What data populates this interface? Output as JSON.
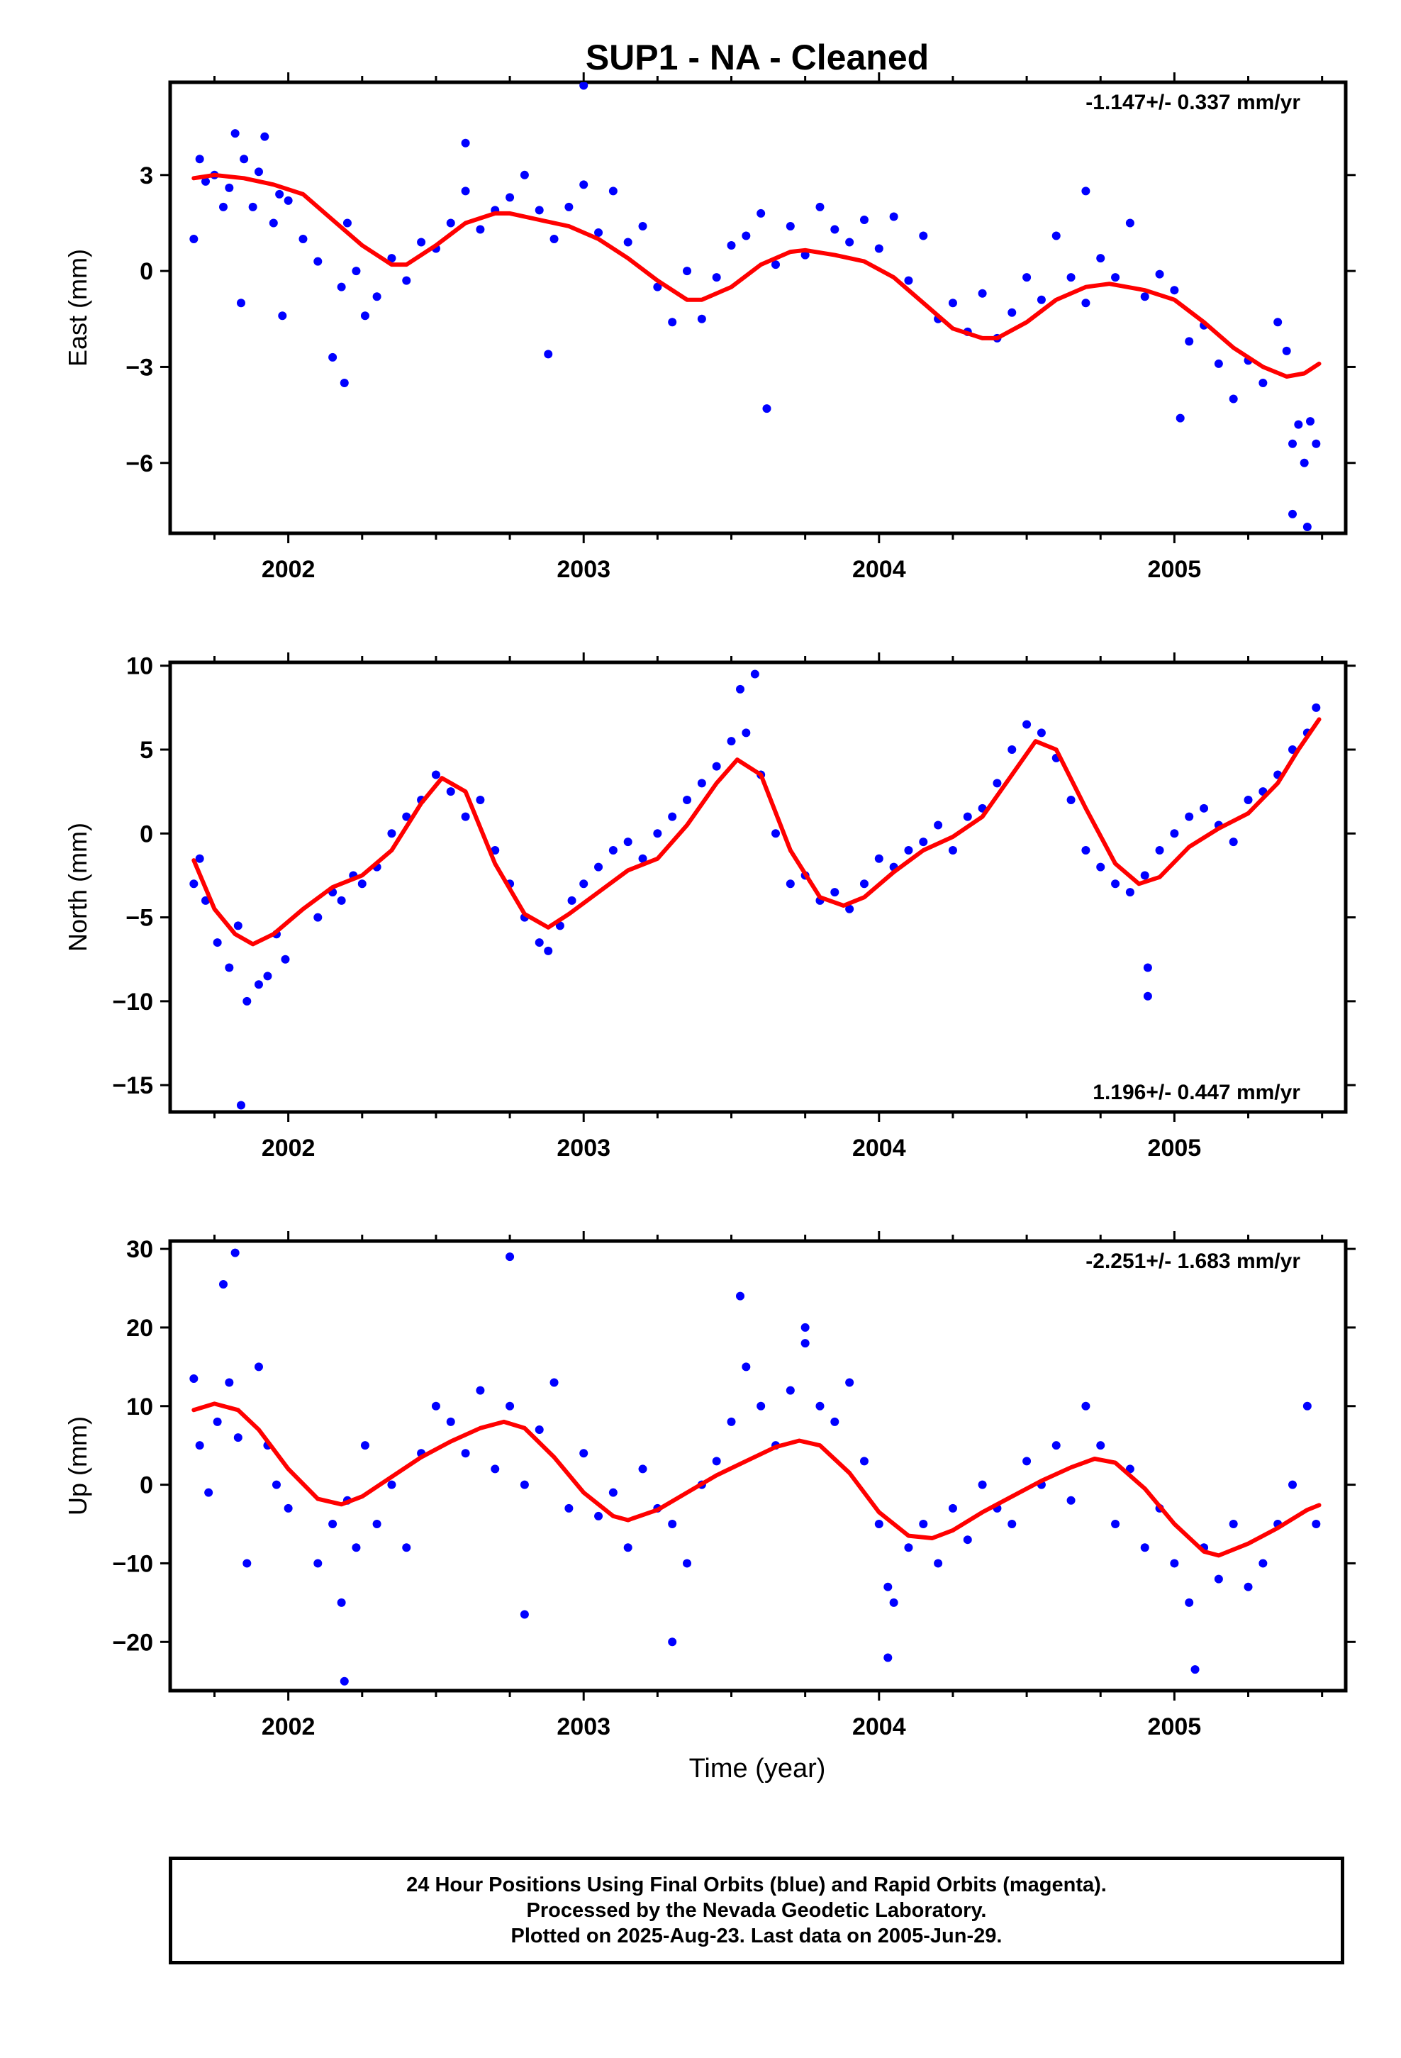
{
  "figure": {
    "title": "SUP1  - NA - Cleaned",
    "xlabel": "Time (year)",
    "footer_lines": [
      "24 Hour Positions Using Final Orbits (blue) and Rapid Orbits (magenta).",
      "Processed by the Nevada Geodetic Laboratory.",
      "Plotted on 2025-Aug-23. Last data on 2005-Jun-29."
    ],
    "colors": {
      "points": "#0000ff",
      "fit": "#ff0000",
      "frame": "#000000"
    }
  },
  "chart_data": [
    {
      "type": "scatter",
      "component": "East",
      "ylabel": "East (mm)",
      "rate_label": "-1.147+/- 0.337 mm/yr",
      "rate_position": "top-right",
      "xlim": [
        2001.6,
        2005.58
      ],
      "ylim": [
        -8.2,
        5.9
      ],
      "xticks": [
        2002,
        2003,
        2004,
        2005
      ],
      "yticks": [
        3,
        0,
        -3,
        -6
      ],
      "ytick_labels": [
        "3",
        "0",
        "−3",
        "−6"
      ],
      "grid": false,
      "series": [
        {
          "role": "daily_positions",
          "marker": "dot",
          "x": [
            2001.68,
            2001.7,
            2001.72,
            2001.75,
            2001.78,
            2001.8,
            2001.82,
            2001.85,
            2001.88,
            2001.9,
            2001.92,
            2001.95,
            2001.97,
            2002.0,
            2002.05,
            2002.1,
            2002.15,
            2002.18,
            2002.2,
            2002.23,
            2002.26,
            2002.3,
            2002.35,
            2002.4,
            2002.45,
            2002.5,
            2002.55,
            2002.6,
            2002.65,
            2002.7,
            2002.75,
            2002.8,
            2002.85,
            2002.9,
            2002.95,
            2003.0,
            2003.05,
            2003.1,
            2003.15,
            2003.2,
            2003.25,
            2003.3,
            2003.35,
            2003.4,
            2003.45,
            2003.5,
            2003.55,
            2003.6,
            2003.65,
            2003.7,
            2003.75,
            2003.8,
            2003.85,
            2003.9,
            2003.95,
            2004.0,
            2004.05,
            2004.1,
            2004.15,
            2004.2,
            2004.25,
            2004.3,
            2004.35,
            2004.4,
            2004.45,
            2004.5,
            2004.55,
            2004.6,
            2004.65,
            2004.7,
            2004.75,
            2004.8,
            2004.85,
            2004.9,
            2004.95,
            2005.0,
            2005.05,
            2005.1,
            2005.15,
            2005.2,
            2005.25,
            2005.3,
            2005.35,
            2005.38,
            2005.4,
            2005.42,
            2005.44,
            2005.46,
            2005.48,
            2001.84,
            2001.98,
            2002.6,
            2003.0,
            2003.62,
            2004.7,
            2005.45,
            2005.4,
            2002.19,
            2002.88,
            2005.02
          ],
          "y": [
            1.0,
            3.5,
            2.8,
            3.0,
            2.0,
            2.6,
            4.3,
            3.5,
            2.0,
            3.1,
            4.2,
            1.5,
            2.4,
            2.2,
            1.0,
            0.3,
            -2.7,
            -0.5,
            1.5,
            0.0,
            -1.4,
            -0.8,
            0.4,
            -0.3,
            0.9,
            0.7,
            1.5,
            2.5,
            1.3,
            1.9,
            2.3,
            3.0,
            1.9,
            1.0,
            2.0,
            2.7,
            1.2,
            2.5,
            0.9,
            1.4,
            -0.5,
            -1.6,
            0.0,
            -1.5,
            -0.2,
            0.8,
            1.1,
            1.8,
            0.2,
            1.4,
            0.5,
            2.0,
            1.3,
            0.9,
            1.6,
            0.7,
            1.7,
            -0.3,
            1.1,
            -1.5,
            -1.0,
            -1.9,
            -0.7,
            -2.1,
            -1.3,
            -0.2,
            -0.9,
            1.1,
            -0.2,
            -1.0,
            0.4,
            -0.2,
            1.5,
            -0.8,
            -0.1,
            -0.6,
            -2.2,
            -1.7,
            -2.9,
            -4.0,
            -2.8,
            -3.5,
            -1.6,
            -2.5,
            -5.4,
            -4.8,
            -6.0,
            -4.7,
            -5.4,
            -1.0,
            -1.4,
            4.0,
            5.8,
            -4.3,
            2.5,
            -8.0,
            -7.6,
            -3.5,
            -2.6,
            -4.6
          ]
        },
        {
          "role": "smoothed_fit",
          "marker": "line",
          "x": [
            2001.68,
            2001.75,
            2001.85,
            2001.95,
            2002.05,
            2002.15,
            2002.25,
            2002.35,
            2002.4,
            2002.5,
            2002.6,
            2002.7,
            2002.75,
            2002.85,
            2002.95,
            2003.05,
            2003.15,
            2003.25,
            2003.35,
            2003.4,
            2003.5,
            2003.6,
            2003.7,
            2003.75,
            2003.85,
            2003.95,
            2004.05,
            2004.15,
            2004.25,
            2004.35,
            2004.4,
            2004.5,
            2004.6,
            2004.7,
            2004.78,
            2004.9,
            2005.0,
            2005.1,
            2005.2,
            2005.3,
            2005.38,
            2005.44,
            2005.49
          ],
          "y": [
            2.9,
            3.0,
            2.9,
            2.7,
            2.4,
            1.6,
            0.8,
            0.2,
            0.2,
            0.8,
            1.5,
            1.8,
            1.8,
            1.6,
            1.4,
            1.0,
            0.4,
            -0.3,
            -0.9,
            -0.9,
            -0.5,
            0.2,
            0.6,
            0.65,
            0.5,
            0.3,
            -0.2,
            -1.0,
            -1.8,
            -2.1,
            -2.1,
            -1.6,
            -0.9,
            -0.5,
            -0.4,
            -0.6,
            -0.9,
            -1.6,
            -2.4,
            -3.0,
            -3.3,
            -3.2,
            -2.9
          ]
        }
      ]
    },
    {
      "type": "scatter",
      "component": "North",
      "ylabel": "North (mm)",
      "rate_label": "1.196+/- 0.447 mm/yr",
      "rate_position": "bottom-right",
      "xlim": [
        2001.6,
        2005.58
      ],
      "ylim": [
        -16.6,
        10.2
      ],
      "xticks": [
        2002,
        2003,
        2004,
        2005
      ],
      "yticks": [
        10,
        5,
        0,
        -5,
        -10,
        -15
      ],
      "ytick_labels": [
        "10",
        "5",
        "0",
        "−5",
        "−10",
        "−15"
      ],
      "grid": false,
      "series": [
        {
          "role": "daily_positions",
          "marker": "dot",
          "x": [
            2001.68,
            2001.7,
            2001.72,
            2001.76,
            2001.8,
            2001.83,
            2001.86,
            2001.9,
            2001.93,
            2001.96,
            2001.99,
            2002.1,
            2002.15,
            2002.18,
            2002.22,
            2002.25,
            2002.3,
            2002.35,
            2002.4,
            2002.45,
            2002.5,
            2002.55,
            2002.6,
            2002.65,
            2002.7,
            2002.75,
            2002.8,
            2002.85,
            2002.88,
            2002.92,
            2002.96,
            2003.0,
            2003.05,
            2003.1,
            2003.15,
            2003.2,
            2003.25,
            2003.3,
            2003.35,
            2003.4,
            2003.45,
            2003.5,
            2003.55,
            2003.6,
            2003.65,
            2003.7,
            2003.75,
            2003.8,
            2003.85,
            2003.9,
            2003.95,
            2004.0,
            2004.05,
            2004.1,
            2004.15,
            2004.2,
            2004.25,
            2004.3,
            2004.35,
            2004.4,
            2004.45,
            2004.5,
            2004.55,
            2004.6,
            2004.65,
            2004.7,
            2004.75,
            2004.8,
            2004.85,
            2004.9,
            2004.95,
            2005.0,
            2005.05,
            2005.1,
            2005.15,
            2005.2,
            2005.25,
            2005.3,
            2005.35,
            2005.4,
            2005.45,
            2005.48,
            2001.84,
            2003.53,
            2003.58,
            2004.91,
            2004.91
          ],
          "y": [
            -3.0,
            -1.5,
            -4.0,
            -6.5,
            -8.0,
            -5.5,
            -10.0,
            -9.0,
            -8.5,
            -6.0,
            -7.5,
            -5.0,
            -3.5,
            -4.0,
            -2.5,
            -3.0,
            -2.0,
            0.0,
            1.0,
            2.0,
            3.5,
            2.5,
            1.0,
            2.0,
            -1.0,
            -3.0,
            -5.0,
            -6.5,
            -7.0,
            -5.5,
            -4.0,
            -3.0,
            -2.0,
            -1.0,
            -0.5,
            -1.5,
            0.0,
            1.0,
            2.0,
            3.0,
            4.0,
            5.5,
            6.0,
            3.5,
            0.0,
            -3.0,
            -2.5,
            -4.0,
            -3.5,
            -4.5,
            -3.0,
            -1.5,
            -2.0,
            -1.0,
            -0.5,
            0.5,
            -1.0,
            1.0,
            1.5,
            3.0,
            5.0,
            6.5,
            6.0,
            4.5,
            2.0,
            -1.0,
            -2.0,
            -3.0,
            -3.5,
            -2.5,
            -1.0,
            0.0,
            1.0,
            1.5,
            0.5,
            -0.5,
            2.0,
            2.5,
            3.5,
            5.0,
            6.0,
            7.5,
            -16.2,
            8.6,
            9.5,
            -8.0,
            -9.7
          ]
        },
        {
          "role": "smoothed_fit",
          "marker": "line",
          "x": [
            2001.68,
            2001.75,
            2001.82,
            2001.88,
            2001.95,
            2002.05,
            2002.15,
            2002.25,
            2002.35,
            2002.45,
            2002.52,
            2002.6,
            2002.7,
            2002.8,
            2002.88,
            2002.95,
            2003.05,
            2003.15,
            2003.25,
            2003.35,
            2003.45,
            2003.52,
            2003.6,
            2003.7,
            2003.8,
            2003.88,
            2003.95,
            2004.05,
            2004.15,
            2004.25,
            2004.35,
            2004.45,
            2004.53,
            2004.6,
            2004.7,
            2004.8,
            2004.88,
            2004.95,
            2005.05,
            2005.15,
            2005.25,
            2005.35,
            2005.42,
            2005.49
          ],
          "y": [
            -1.6,
            -4.5,
            -6.0,
            -6.6,
            -6.0,
            -4.5,
            -3.2,
            -2.5,
            -1.0,
            1.8,
            3.3,
            2.5,
            -1.8,
            -4.8,
            -5.6,
            -4.8,
            -3.5,
            -2.2,
            -1.5,
            0.5,
            3.0,
            4.4,
            3.5,
            -1.0,
            -3.8,
            -4.3,
            -3.8,
            -2.3,
            -1.0,
            -0.2,
            1.0,
            3.5,
            5.5,
            5.0,
            1.5,
            -1.8,
            -3.0,
            -2.6,
            -0.8,
            0.3,
            1.2,
            3.0,
            5.0,
            6.8
          ]
        }
      ]
    },
    {
      "type": "scatter",
      "component": "Up",
      "ylabel": "Up (mm)",
      "rate_label": "-2.251+/- 1.683 mm/yr",
      "rate_position": "top-right",
      "xlim": [
        2001.6,
        2005.58
      ],
      "ylim": [
        -26.2,
        31.0
      ],
      "xticks": [
        2002,
        2003,
        2004,
        2005
      ],
      "yticks": [
        30,
        20,
        10,
        0,
        -10,
        -20
      ],
      "ytick_labels": [
        "30",
        "20",
        "10",
        "0",
        "−10",
        "−20"
      ],
      "grid": false,
      "series": [
        {
          "role": "daily_positions",
          "marker": "dot",
          "x": [
            2001.68,
            2001.7,
            2001.73,
            2001.76,
            2001.8,
            2001.83,
            2001.86,
            2001.9,
            2001.93,
            2001.96,
            2002.0,
            2002.1,
            2002.15,
            2002.18,
            2002.2,
            2002.23,
            2002.26,
            2002.3,
            2002.35,
            2002.4,
            2002.45,
            2002.5,
            2002.55,
            2002.6,
            2002.65,
            2002.7,
            2002.75,
            2002.8,
            2002.85,
            2002.9,
            2002.95,
            2003.0,
            2003.05,
            2003.1,
            2003.15,
            2003.2,
            2003.25,
            2003.3,
            2003.35,
            2003.4,
            2003.45,
            2003.5,
            2003.55,
            2003.6,
            2003.65,
            2003.7,
            2003.75,
            2003.8,
            2003.85,
            2003.9,
            2003.95,
            2004.0,
            2004.03,
            2004.05,
            2004.1,
            2004.15,
            2004.2,
            2004.25,
            2004.3,
            2004.35,
            2004.4,
            2004.45,
            2004.5,
            2004.55,
            2004.6,
            2004.65,
            2004.7,
            2004.75,
            2004.8,
            2004.85,
            2004.9,
            2004.95,
            2005.0,
            2005.05,
            2005.1,
            2005.15,
            2005.2,
            2005.25,
            2005.3,
            2005.35,
            2005.4,
            2005.45,
            2005.48,
            2001.78,
            2001.82,
            2002.19,
            2002.75,
            2003.3,
            2003.53,
            2004.03,
            2005.07,
            2002.8,
            2003.75
          ],
          "y": [
            13.5,
            5.0,
            -1.0,
            8.0,
            13.0,
            6.0,
            -10.0,
            15.0,
            5.0,
            0.0,
            -3.0,
            -10.0,
            -5.0,
            -15.0,
            -2.0,
            -8.0,
            5.0,
            -5.0,
            0.0,
            -8.0,
            4.0,
            10.0,
            8.0,
            4.0,
            12.0,
            2.0,
            10.0,
            0.0,
            7.0,
            13.0,
            -3.0,
            4.0,
            -4.0,
            -1.0,
            -8.0,
            2.0,
            -3.0,
            -5.0,
            -10.0,
            0.0,
            3.0,
            8.0,
            15.0,
            10.0,
            5.0,
            12.0,
            18.0,
            10.0,
            8.0,
            13.0,
            3.0,
            -5.0,
            -13.0,
            -15.0,
            -8.0,
            -5.0,
            -10.0,
            -3.0,
            -7.0,
            0.0,
            -3.0,
            -5.0,
            3.0,
            0.0,
            5.0,
            -2.0,
            10.0,
            5.0,
            -5.0,
            2.0,
            -8.0,
            -3.0,
            -10.0,
            -15.0,
            -8.0,
            -12.0,
            -5.0,
            -13.0,
            -10.0,
            -5.0,
            0.0,
            10.0,
            -5.0,
            25.5,
            29.5,
            -25.0,
            29.0,
            -20.0,
            24.0,
            -22.0,
            -23.5,
            -16.5,
            20.0
          ]
        },
        {
          "role": "smoothed_fit",
          "marker": "line",
          "x": [
            2001.68,
            2001.75,
            2001.83,
            2001.9,
            2002.0,
            2002.1,
            2002.18,
            2002.25,
            2002.35,
            2002.45,
            2002.55,
            2002.65,
            2002.73,
            2002.8,
            2002.9,
            2003.0,
            2003.1,
            2003.15,
            2003.25,
            2003.35,
            2003.45,
            2003.55,
            2003.65,
            2003.73,
            2003.8,
            2003.9,
            2004.0,
            2004.1,
            2004.18,
            2004.25,
            2004.35,
            2004.45,
            2004.55,
            2004.65,
            2004.73,
            2004.8,
            2004.9,
            2005.0,
            2005.1,
            2005.15,
            2005.25,
            2005.35,
            2005.45,
            2005.49
          ],
          "y": [
            9.5,
            10.3,
            9.5,
            7.0,
            2.0,
            -1.8,
            -2.5,
            -1.5,
            1.0,
            3.5,
            5.5,
            7.2,
            8.0,
            7.2,
            3.5,
            -1.0,
            -4.0,
            -4.5,
            -3.2,
            -1.0,
            1.2,
            3.0,
            4.8,
            5.6,
            5.0,
            1.5,
            -3.5,
            -6.5,
            -6.8,
            -5.8,
            -3.5,
            -1.5,
            0.5,
            2.2,
            3.3,
            2.8,
            -0.5,
            -5.0,
            -8.5,
            -9.0,
            -7.5,
            -5.5,
            -3.2,
            -2.6
          ]
        }
      ]
    }
  ]
}
